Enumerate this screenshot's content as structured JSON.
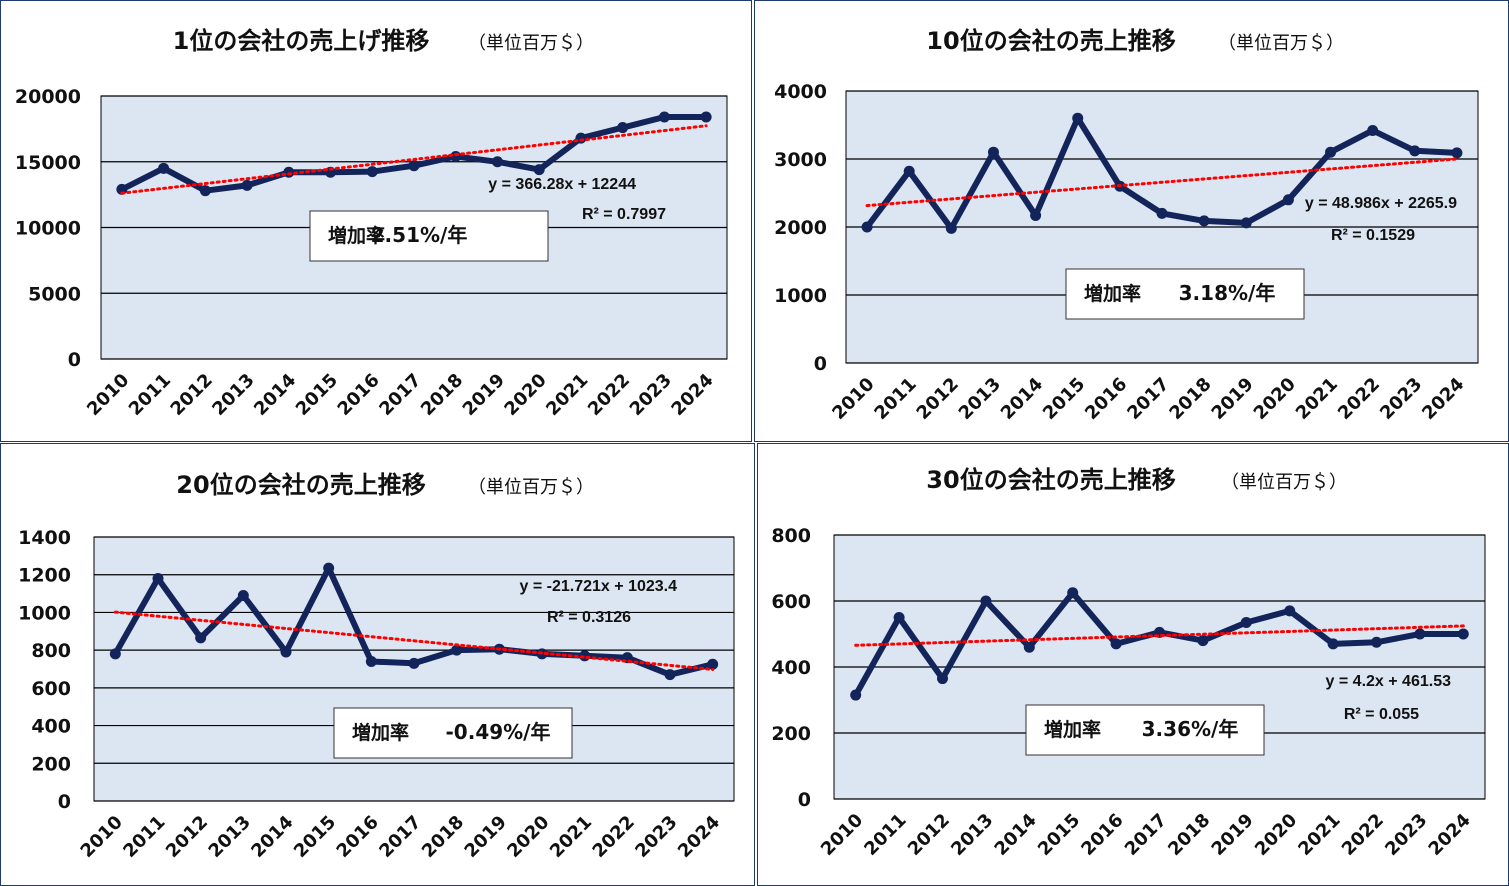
{
  "chart_data": [
    {
      "type": "line",
      "title": "1位の会社の売上げ推移",
      "unit": "（単位百万＄）",
      "categories": [
        "2010",
        "2011",
        "2012",
        "2013",
        "2014",
        "2015",
        "2016",
        "2017",
        "2018",
        "2019",
        "2020",
        "2021",
        "2022",
        "2023",
        "2024"
      ],
      "values": [
        12900,
        14500,
        12800,
        13200,
        14200,
        14200,
        14250,
        14700,
        15400,
        15000,
        14400,
        16800,
        17600,
        18400,
        18400
      ],
      "ylim": [
        0,
        20000
      ],
      "yticks": [
        "0",
        "5000",
        "10000",
        "15000",
        "20000"
      ],
      "trend": {
        "slope": 366.28,
        "intercept": 12244
      },
      "equation": "y = 366.28x + 12244",
      "r2": "R² = 0.7997",
      "rate_label": "増加率",
      "rate": "2.51%/年",
      "grid": true
    },
    {
      "type": "line",
      "title": "10位の会社の売上推移",
      "unit": "（単位百万＄）",
      "categories": [
        "2010",
        "2011",
        "2012",
        "2013",
        "2014",
        "2015",
        "2016",
        "2017",
        "2018",
        "2019",
        "2020",
        "2021",
        "2022",
        "2023",
        "2024"
      ],
      "values": [
        2000,
        2820,
        1980,
        3100,
        2170,
        3600,
        2600,
        2200,
        2090,
        2060,
        2400,
        3100,
        3420,
        3120,
        3090
      ],
      "ylim": [
        0,
        4000
      ],
      "yticks": [
        "0",
        "1000",
        "2000",
        "3000",
        "4000"
      ],
      "trend": {
        "slope": 48.986,
        "intercept": 2265.9
      },
      "equation": "y = 48.986x + 2265.9",
      "r2": "R² = 0.1529",
      "rate_label": "増加率",
      "rate": "3.18%/年",
      "grid": true
    },
    {
      "type": "line",
      "title": "20位の会社の売上推移",
      "unit": "（単位百万＄）",
      "categories": [
        "2010",
        "2011",
        "2012",
        "2013",
        "2014",
        "2015",
        "2016",
        "2017",
        "2018",
        "2019",
        "2020",
        "2021",
        "2022",
        "2023",
        "2024"
      ],
      "values": [
        780,
        1180,
        865,
        1090,
        790,
        1235,
        740,
        730,
        800,
        805,
        780,
        770,
        760,
        670,
        725
      ],
      "ylim": [
        0,
        1400
      ],
      "yticks": [
        "0",
        "200",
        "400",
        "600",
        "800",
        "1000",
        "1200",
        "1400"
      ],
      "trend": {
        "slope": -21.721,
        "intercept": 1023.4
      },
      "equation": "y = -21.721x + 1023.4",
      "r2": "R² = 0.3126",
      "rate_label": "増加率",
      "rate": "-0.49%/年",
      "grid": true
    },
    {
      "type": "line",
      "title": "30位の会社の売上推移",
      "unit": "（単位百万＄）",
      "categories": [
        "2010",
        "2011",
        "2012",
        "2013",
        "2014",
        "2015",
        "2016",
        "2017",
        "2018",
        "2019",
        "2020",
        "2021",
        "2022",
        "2023",
        "2024"
      ],
      "values": [
        315,
        550,
        365,
        600,
        460,
        625,
        470,
        505,
        480,
        535,
        570,
        470,
        475,
        500,
        500
      ],
      "ylim": [
        0,
        800
      ],
      "yticks": [
        "0",
        "200",
        "400",
        "600",
        "800"
      ],
      "trend": {
        "slope": 4.2,
        "intercept": 461.53
      },
      "equation": "y = 4.2x + 461.53",
      "r2": "R² = 0.055",
      "rate_label": "増加率",
      "rate": "3.36%/年",
      "grid": true
    }
  ],
  "colors": {
    "plot_bg": "#dce6f2",
    "series": "#13245a",
    "trend": "#ff0000",
    "grid": "#000000",
    "border": "#1f3a6e"
  }
}
